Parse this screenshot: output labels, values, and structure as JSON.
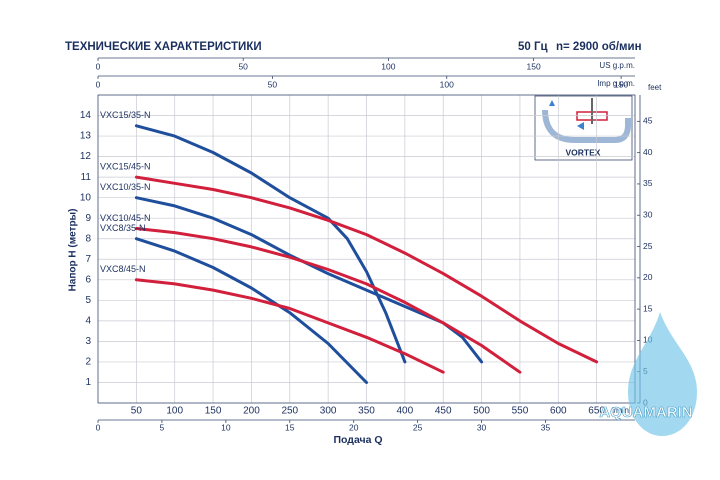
{
  "chart_data": {
    "type": "line",
    "title": "ТЕХНИЧЕСКИЕ ХАРАКТЕРИСТИКИ",
    "frequency": "50 Гц",
    "speed": "n= 2900 об/мин",
    "xlabel": "Подача Q",
    "ylabel": "Напор H (метры)",
    "xunit": "l/min",
    "xlim": [
      0,
      700
    ],
    "xticks": [
      50,
      100,
      150,
      200,
      250,
      300,
      350,
      400,
      450,
      500,
      550,
      600,
      650
    ],
    "ylim": [
      0,
      15
    ],
    "yticks": [
      1,
      2,
      3,
      4,
      5,
      6,
      7,
      8,
      9,
      10,
      11,
      12,
      13,
      14
    ],
    "grid": true,
    "top_axes": [
      {
        "label": "US g.p.m.",
        "lim": [
          0,
          184.92
        ],
        "ticks": [
          0,
          50,
          100,
          150
        ]
      },
      {
        "label": "Imp g.p.m.",
        "lim": [
          0,
          153.98
        ],
        "ticks": [
          0,
          50,
          100,
          150
        ]
      }
    ],
    "bottom_axis2": {
      "lim": [
        0,
        42
      ],
      "ticks": [
        0,
        5,
        10,
        15,
        20,
        25,
        30,
        35
      ]
    },
    "right_axis": {
      "label": "feet",
      "lim": [
        0,
        49.21
      ],
      "ticks": [
        0,
        5,
        10,
        15,
        20,
        25,
        30,
        35,
        40,
        45
      ]
    },
    "inset_label": "VORTEX",
    "series": [
      {
        "name": "VXC15/35-N",
        "color": "#1f4f9c",
        "x": [
          50,
          100,
          150,
          200,
          250,
          300,
          325,
          350,
          375,
          400
        ],
        "values": [
          13.5,
          13.0,
          12.2,
          11.2,
          10.0,
          9.0,
          8.0,
          6.4,
          4.4,
          2.0
        ]
      },
      {
        "name": "VXC15/45-N",
        "color": "#d11f3c",
        "x": [
          50,
          100,
          150,
          200,
          250,
          300,
          350,
          400,
          450,
          500,
          550,
          600,
          650
        ],
        "values": [
          11.0,
          10.7,
          10.4,
          10.0,
          9.5,
          8.9,
          8.2,
          7.3,
          6.3,
          5.2,
          4.0,
          2.9,
          2.0
        ]
      },
      {
        "name": "VXC10/35-N",
        "color": "#1f4f9c",
        "x": [
          50,
          100,
          150,
          200,
          250,
          300,
          350,
          400,
          450,
          475,
          500
        ],
        "values": [
          10.0,
          9.6,
          9.0,
          8.2,
          7.2,
          6.3,
          5.5,
          4.7,
          3.9,
          3.2,
          2.0
        ]
      },
      {
        "name": "VXC10/45-N",
        "color": "#d11f3c",
        "x": [
          50,
          100,
          150,
          200,
          250,
          300,
          350,
          400,
          450,
          500,
          550
        ],
        "values": [
          8.5,
          8.3,
          8.0,
          7.6,
          7.1,
          6.5,
          5.8,
          4.9,
          3.9,
          2.8,
          1.5
        ]
      },
      {
        "name": "VXC8/35-N",
        "color": "#1f4f9c",
        "x": [
          50,
          100,
          150,
          200,
          250,
          300,
          350
        ],
        "values": [
          8.0,
          7.4,
          6.6,
          5.6,
          4.4,
          2.9,
          1.0
        ]
      },
      {
        "name": "VXC8/45-N",
        "color": "#d11f3c",
        "x": [
          50,
          100,
          150,
          200,
          250,
          300,
          350,
          400,
          450
        ],
        "values": [
          6.0,
          5.8,
          5.5,
          5.1,
          4.6,
          3.9,
          3.2,
          2.4,
          1.5
        ]
      }
    ]
  },
  "watermark": {
    "brand": "AQUAMARIN",
    "site": "Avito"
  }
}
